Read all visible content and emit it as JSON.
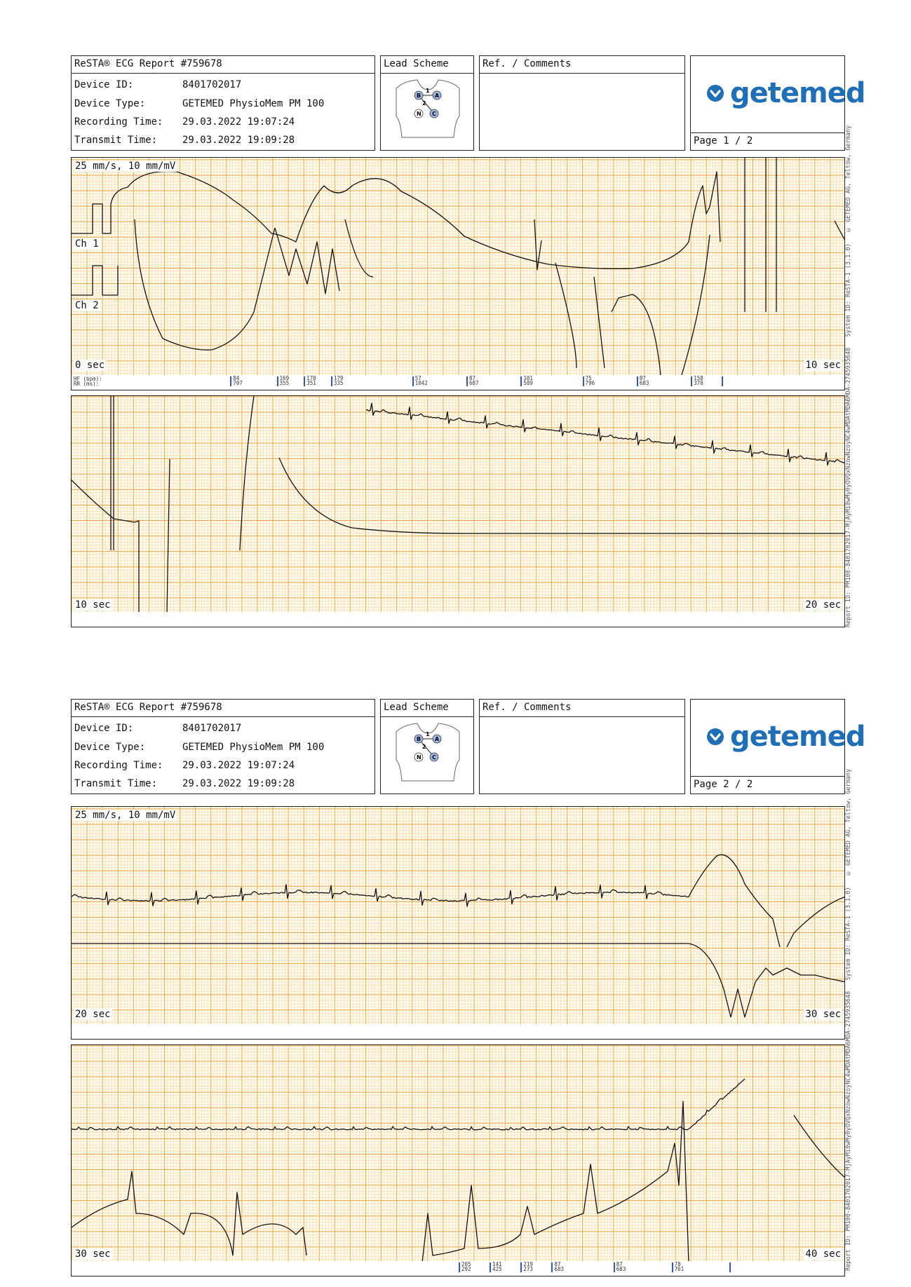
{
  "header": {
    "report_title": "ReSTA® ECG Report #759678",
    "device_id_label": "Device ID:",
    "device_id": "8401702017",
    "device_type_label": "Device Type:",
    "device_type": "GETEMED PhysioMem PM 100",
    "recording_time_label": "Recording Time:",
    "recording_time": "29.03.2022 19:07:24",
    "transmit_time_label": "Transmit Time:",
    "transmit_time": "29.03.2022 19:09:28",
    "lead_scheme_label": "Lead Scheme",
    "lead_marks": [
      "B",
      "A",
      "N",
      "C",
      "1",
      "2"
    ],
    "comments_label": "Ref. / Comments",
    "logo_text": "getemed"
  },
  "pages": [
    {
      "label": "Page 1 / 2"
    },
    {
      "label": "Page 2 / 2"
    }
  ],
  "side_text": {
    "copyright": "© GETEMED AG, Teltow, Germany",
    "system": "System ID: ReSTA-1 (3.1.0)",
    "report": "Report ID: PM100-8401702017-MjAyMi0wMy0yOVQxNzowNzoyNC4wMDAtMDA6MDA-2745935648"
  },
  "strips": {
    "scale_label": "25 mm/s, 10 mm/mV",
    "ch1_label": "Ch 1",
    "ch2_label": "Ch 2",
    "s1_start": "0 sec",
    "s1_end": "10 sec",
    "s2_start": "10 sec",
    "s2_end": "20 sec",
    "s3_start": "20 sec",
    "s3_end": "30 sec",
    "s4_start": "30 sec",
    "s4_end": "40 sec",
    "hr_label": "HF (bpm):",
    "rr_label": "RR (ms):"
  },
  "beats_strip1": [
    {
      "t": 2.05,
      "hf": "84",
      "rr": "707"
    },
    {
      "t": 2.65,
      "hf": "169",
      "rr": "355"
    },
    {
      "t": 3.0,
      "hf": "170",
      "rr": "351"
    },
    {
      "t": 3.35,
      "hf": "179",
      "rr": "335"
    },
    {
      "t": 4.4,
      "hf": "57",
      "rr": "1042"
    },
    {
      "t": 5.1,
      "hf": "87",
      "rr": "687"
    },
    {
      "t": 5.8,
      "hf": "101",
      "rr": "589"
    },
    {
      "t": 6.6,
      "hf": "75",
      "rr": "796"
    },
    {
      "t": 7.3,
      "hf": "87",
      "rr": "683"
    },
    {
      "t": 8.0,
      "hf": "158",
      "rr": "378"
    },
    {
      "t": 8.4,
      "hf": "",
      "rr": ""
    }
  ],
  "beats_strip4": [
    {
      "t": 5.0,
      "hf": "205",
      "rr": "292"
    },
    {
      "t": 5.4,
      "hf": "141",
      "rr": "425"
    },
    {
      "t": 5.8,
      "hf": "219",
      "rr": "273"
    },
    {
      "t": 6.2,
      "hf": "87",
      "rr": "683"
    },
    {
      "t": 7.0,
      "hf": "87",
      "rr": "683"
    },
    {
      "t": 7.75,
      "hf": "78",
      "rr": "761"
    },
    {
      "t": 8.5,
      "hf": "",
      "rr": ""
    }
  ],
  "colors": {
    "grid_minor": "#f6d7a3",
    "grid_major": "#e8a640",
    "paper": "#fffbef",
    "trace": "#111111",
    "logo_blue": "#1f6fb8",
    "tick_blue": "#3558b8"
  }
}
